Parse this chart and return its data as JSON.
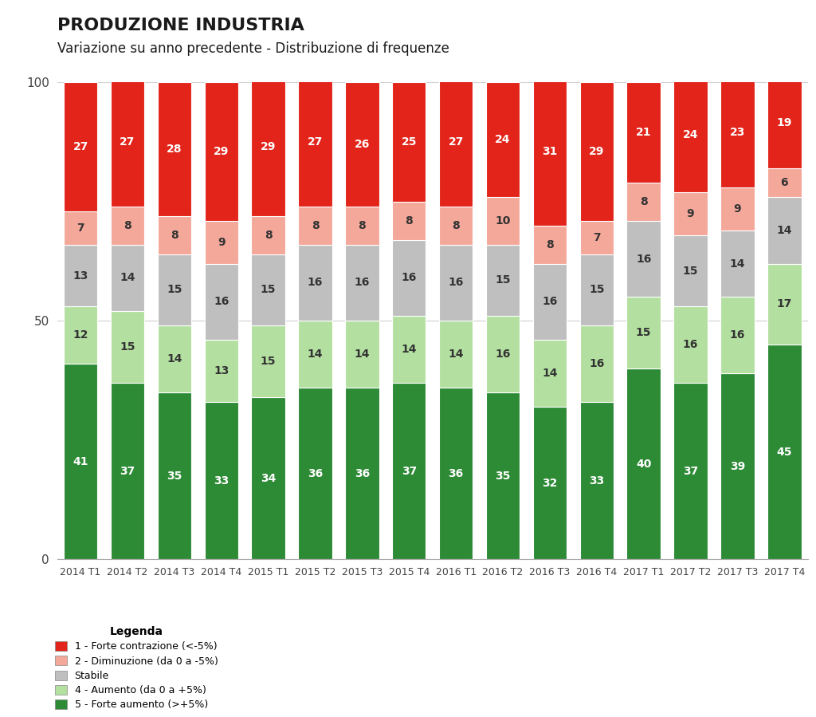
{
  "title": "PRODUZIONE INDUSTRIA",
  "subtitle": "Variazione su anno precedente - Distribuzione di frequenze",
  "categories": [
    "2014 T1",
    "2014 T2",
    "2014 T3",
    "2014 T4",
    "2015 T1",
    "2015 T2",
    "2015 T3",
    "2015 T4",
    "2016 T1",
    "2016 T2",
    "2016 T3",
    "2016 T4",
    "2017 T1",
    "2017 T2",
    "2017 T3",
    "2017 T4"
  ],
  "series": {
    "forte_contrazione": [
      27,
      27,
      28,
      29,
      29,
      27,
      26,
      25,
      27,
      24,
      31,
      29,
      21,
      24,
      23,
      19
    ],
    "diminuzione": [
      7,
      8,
      8,
      9,
      8,
      8,
      8,
      8,
      8,
      10,
      8,
      7,
      8,
      9,
      9,
      6
    ],
    "stabile": [
      13,
      14,
      15,
      16,
      15,
      16,
      16,
      16,
      16,
      15,
      16,
      15,
      16,
      15,
      14,
      14
    ],
    "aumento": [
      12,
      15,
      14,
      13,
      15,
      14,
      14,
      14,
      14,
      16,
      14,
      16,
      15,
      16,
      16,
      17
    ],
    "forte_aumento": [
      41,
      37,
      35,
      33,
      34,
      36,
      36,
      37,
      36,
      35,
      32,
      33,
      40,
      37,
      39,
      45
    ]
  },
  "colors": {
    "forte_contrazione": "#e2241a",
    "diminuzione": "#f4a89a",
    "stabile": "#c0bfbf",
    "aumento": "#b3e0a0",
    "forte_aumento": "#2d8a35"
  },
  "text_colors": {
    "forte_contrazione": "#ffffff",
    "diminuzione": "#333333",
    "stabile": "#333333",
    "aumento": "#333333",
    "forte_aumento": "#ffffff"
  },
  "legend_labels": [
    "1 - Forte contrazione (<-5%)",
    "2 - Diminuzione (da 0 a -5%)",
    "Stabile",
    "4 - Aumento (da 0 a +5%)",
    "5 - Forte aumento (>+5%)"
  ],
  "ylim": [
    0,
    100
  ],
  "yticks": [
    0,
    50,
    100
  ],
  "bar_width": 0.72,
  "title_fontsize": 16,
  "subtitle_fontsize": 12,
  "label_fontsize": 10,
  "background_color": "#ffffff"
}
